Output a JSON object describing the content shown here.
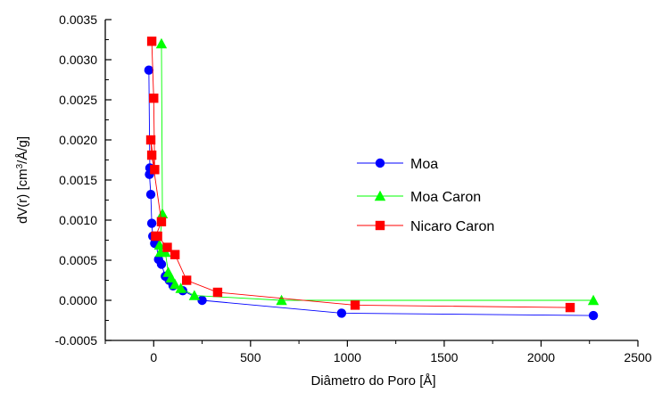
{
  "chart_data": {
    "type": "line",
    "title": "",
    "xlabel": "Diâmetro do Poro [Å]",
    "ylabel_parts": {
      "before": "dV(r) [cm",
      "sup": "3",
      "after": "/Å/g]"
    },
    "xlim": [
      -250,
      2500
    ],
    "ylim": [
      -0.0005,
      0.0035
    ],
    "x_ticks": [
      0,
      500,
      1000,
      1500,
      2000,
      2500
    ],
    "x_tick_labels": [
      "0",
      "500",
      "1000",
      "1500",
      "2000",
      "2500"
    ],
    "y_ticks": [
      -0.0005,
      0.0,
      0.0005,
      0.001,
      0.0015,
      0.002,
      0.0025,
      0.003,
      0.0035
    ],
    "y_tick_labels": [
      "-0.0005",
      "0.0000",
      "0.0005",
      "0.0010",
      "0.0015",
      "0.0020",
      "0.0025",
      "0.0030",
      "0.0035"
    ],
    "grid": false,
    "legend_position": "center-right",
    "series": [
      {
        "name": "Moa",
        "color": "#0000ff",
        "marker": "circle",
        "points": [
          [
            -25,
            0.00287
          ],
          [
            -20,
            0.00165
          ],
          [
            -22,
            0.00157
          ],
          [
            -15,
            0.00132
          ],
          [
            -10,
            0.00096
          ],
          [
            -5,
            0.0008
          ],
          [
            5,
            0.00071
          ],
          [
            10,
            0.00076
          ],
          [
            25,
            0.00051
          ],
          [
            40,
            0.00045
          ],
          [
            60,
            0.0003
          ],
          [
            80,
            0.00025
          ],
          [
            100,
            0.00018
          ],
          [
            150,
            0.00012
          ],
          [
            250,
            0.0
          ],
          [
            970,
            -0.00016
          ],
          [
            2270,
            -0.00019
          ]
        ]
      },
      {
        "name": "Moa Caron",
        "color": "#00ff00",
        "marker": "triangle",
        "points": [
          [
            40,
            0.0032
          ],
          [
            45,
            0.00108
          ],
          [
            30,
            0.00069
          ],
          [
            35,
            0.0006
          ],
          [
            60,
            0.0006
          ],
          [
            75,
            0.00035
          ],
          [
            90,
            0.00028
          ],
          [
            110,
            0.0002
          ],
          [
            140,
            0.00015
          ],
          [
            210,
            6e-05
          ],
          [
            660,
            0.0
          ],
          [
            2270,
            0.0
          ]
        ]
      },
      {
        "name": "Nicaro Caron",
        "color": "#ff0000",
        "marker": "square",
        "points": [
          [
            -10,
            0.00323
          ],
          [
            0,
            0.00252
          ],
          [
            5,
            0.00163
          ],
          [
            -15,
            0.002
          ],
          [
            -10,
            0.00181
          ],
          [
            40,
            0.00098
          ],
          [
            10,
            0.0008
          ],
          [
            20,
            0.0008
          ],
          [
            70,
            0.00066
          ],
          [
            110,
            0.00057
          ],
          [
            170,
            0.00025
          ],
          [
            330,
            0.0001
          ],
          [
            1040,
            -6e-05
          ],
          [
            2150,
            -9e-05
          ]
        ]
      }
    ]
  }
}
